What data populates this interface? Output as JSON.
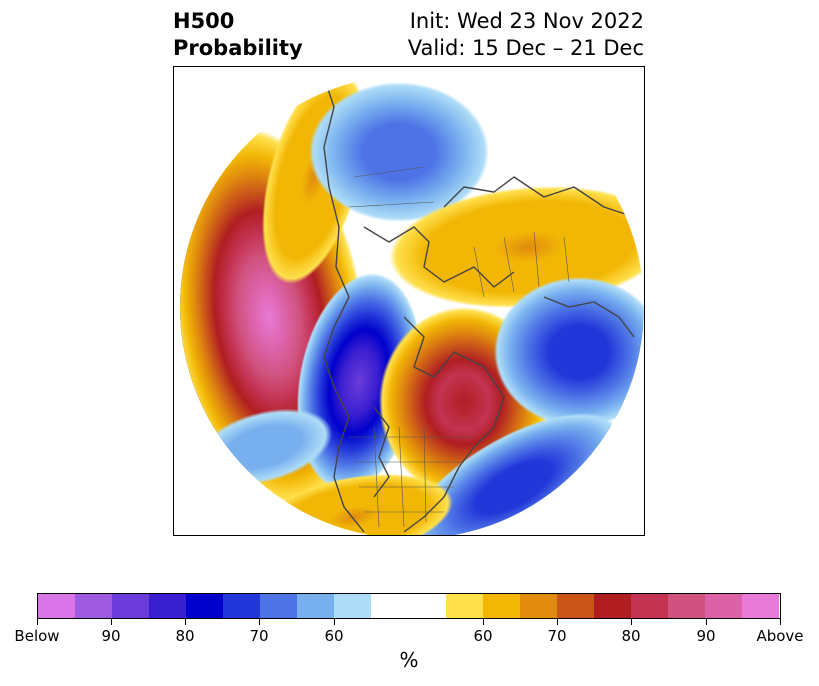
{
  "title": {
    "left_line1": "H500",
    "left_line2": "Probability",
    "right_line1": "Init: Wed 23 Nov 2022",
    "right_line2": "Valid: 15 Dec – 21 Dec"
  },
  "colorbar": {
    "colors": [
      "#d975e8",
      "#9e5ae0",
      "#6b3cd9",
      "#3a1fd0",
      "#0000cc",
      "#2236d9",
      "#4d73e6",
      "#78b0ef",
      "#aedcf7",
      "#ffffff",
      "#ffe04d",
      "#f2b705",
      "#e08a0e",
      "#c95519",
      "#b01e22",
      "#c43352",
      "#d0527e",
      "#dc62a8",
      "#e77ad7"
    ],
    "ticks": [
      {
        "label": "Below"
      },
      {
        "label": "90"
      },
      {
        "label": "80"
      },
      {
        "label": "70"
      },
      {
        "label": "60"
      },
      {
        "label": "60"
      },
      {
        "label": "70"
      },
      {
        "label": "80"
      },
      {
        "label": "90"
      },
      {
        "label": "Above"
      }
    ],
    "unit": "%"
  }
}
